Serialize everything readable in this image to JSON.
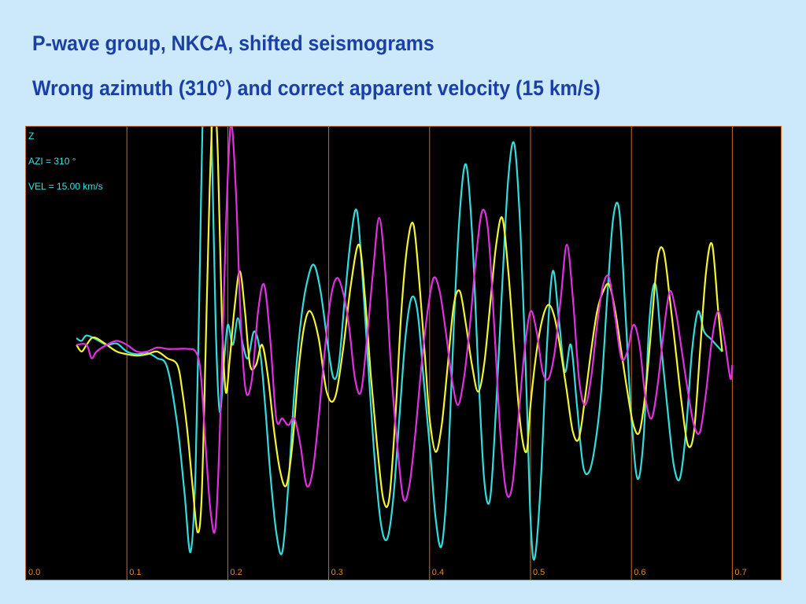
{
  "slide": {
    "title": "P-wave group, NKCA, shifted seismograms",
    "subtitle": "Wrong azimuth (310°) and correct apparent velocity (15 km/s)"
  },
  "chart_data": {
    "type": "line",
    "annotations": {
      "component": "Z",
      "azimuth": "AZI = 310 °",
      "velocity": "VEL = 15.00 km/s"
    },
    "xlim": [
      0.0,
      0.7
    ],
    "x_ticks": [
      "0.0",
      "0.1",
      "0.2",
      "0.3",
      "0.4",
      "0.5",
      "0.6",
      "0.7"
    ],
    "grid": "vertical lines at each tick",
    "colors": {
      "background": "#000000",
      "grid": "#c86e28",
      "label": "#e08a28",
      "annotation": "#3ee0e0"
    },
    "series": [
      {
        "color": "#33dcdc",
        "x": [
          0.05,
          0.055,
          0.06,
          0.07,
          0.08,
          0.09,
          0.1,
          0.11,
          0.12,
          0.13,
          0.14,
          0.15,
          0.157,
          0.163,
          0.168,
          0.172,
          0.176,
          0.18,
          0.184,
          0.188,
          0.192,
          0.196,
          0.2,
          0.205,
          0.21,
          0.215,
          0.22,
          0.226,
          0.232,
          0.237,
          0.242,
          0.248,
          0.254,
          0.26,
          0.266,
          0.272,
          0.278,
          0.285,
          0.292,
          0.3,
          0.305,
          0.31,
          0.316,
          0.322,
          0.328,
          0.334,
          0.34,
          0.346,
          0.352,
          0.358,
          0.364,
          0.37,
          0.376,
          0.382,
          0.388,
          0.394,
          0.4,
          0.406,
          0.412,
          0.418,
          0.424,
          0.43,
          0.436,
          0.442,
          0.448,
          0.454,
          0.46,
          0.466,
          0.472,
          0.478,
          0.484,
          0.49,
          0.496,
          0.5,
          0.504,
          0.51,
          0.516,
          0.522,
          0.528,
          0.534,
          0.54,
          0.546,
          0.552,
          0.558,
          0.564,
          0.57,
          0.576,
          0.582,
          0.588,
          0.594,
          0.6,
          0.606,
          0.612,
          0.618,
          0.624,
          0.63,
          0.636,
          0.642,
          0.648,
          0.654,
          0.66,
          0.666,
          0.672,
          0.678,
          0.684,
          0.69
        ],
        "y": [
          0.1,
          0.08,
          0.12,
          0.09,
          0.05,
          0.06,
          0.0,
          -0.02,
          -0.01,
          -0.05,
          -0.12,
          -0.55,
          -1.05,
          -1.5,
          -0.9,
          0.5,
          2.1,
          2.45,
          1.6,
          0.2,
          -0.45,
          -0.1,
          0.2,
          0.05,
          0.25,
          0.05,
          -0.05,
          0.15,
          0.0,
          -0.4,
          -0.9,
          -1.35,
          -1.5,
          -1.0,
          -0.3,
          0.2,
          0.5,
          0.65,
          0.45,
          0.0,
          -0.2,
          -0.1,
          0.4,
          0.85,
          1.05,
          0.5,
          -0.2,
          -0.85,
          -1.3,
          -1.4,
          -1.1,
          -0.5,
          0.1,
          0.4,
          0.3,
          -0.2,
          -0.7,
          -1.25,
          -1.45,
          -0.9,
          0.2,
          1.05,
          1.4,
          0.9,
          -0.1,
          -0.95,
          -1.1,
          -0.4,
          0.5,
          1.3,
          1.55,
          0.9,
          -0.3,
          -1.25,
          -1.55,
          -1.0,
          0.0,
          0.6,
          0.25,
          -0.15,
          0.05,
          -0.4,
          -0.85,
          -0.9,
          -0.7,
          -0.3,
          0.4,
          1.0,
          1.05,
          0.3,
          -0.5,
          -0.95,
          -0.65,
          0.25,
          0.5,
          0.0,
          -0.45,
          -0.85,
          -0.95,
          -0.6,
          0.0,
          0.3,
          0.15,
          0.1,
          0.05,
          0.0
        ]
      },
      {
        "color": "#f4f430",
        "x": [
          0.05,
          0.055,
          0.06,
          0.065,
          0.07,
          0.08,
          0.09,
          0.1,
          0.11,
          0.12,
          0.13,
          0.14,
          0.15,
          0.155,
          0.16,
          0.165,
          0.17,
          0.174,
          0.178,
          0.182,
          0.186,
          0.19,
          0.194,
          0.198,
          0.202,
          0.207,
          0.212,
          0.217,
          0.222,
          0.228,
          0.234,
          0.24,
          0.246,
          0.252,
          0.258,
          0.264,
          0.27,
          0.276,
          0.282,
          0.29,
          0.298,
          0.306,
          0.314,
          0.322,
          0.33,
          0.336,
          0.342,
          0.348,
          0.354,
          0.36,
          0.366,
          0.372,
          0.378,
          0.384,
          0.39,
          0.396,
          0.4,
          0.406,
          0.412,
          0.418,
          0.424,
          0.43,
          0.436,
          0.442,
          0.448,
          0.454,
          0.46,
          0.466,
          0.472,
          0.478,
          0.484,
          0.49,
          0.496,
          0.5,
          0.506,
          0.512,
          0.518,
          0.524,
          0.53,
          0.536,
          0.542,
          0.548,
          0.554,
          0.56,
          0.566,
          0.572,
          0.578,
          0.584,
          0.59,
          0.596,
          0.602,
          0.608,
          0.614,
          0.62,
          0.626,
          0.632,
          0.638,
          0.644,
          0.65,
          0.656,
          0.662,
          0.668,
          0.674,
          0.68,
          0.686,
          0.69
        ],
        "y": [
          0.05,
          0.0,
          0.05,
          0.1,
          0.1,
          0.05,
          0.0,
          -0.02,
          -0.03,
          -0.02,
          0.0,
          -0.05,
          -0.1,
          -0.3,
          -0.6,
          -1.0,
          -1.35,
          -1.1,
          0.0,
          1.2,
          1.9,
          1.5,
          0.3,
          -0.3,
          -0.05,
          0.35,
          0.6,
          0.3,
          -0.1,
          -0.1,
          0.05,
          -0.2,
          -0.6,
          -0.9,
          -1.0,
          -0.7,
          -0.15,
          0.2,
          0.3,
          0.1,
          -0.3,
          -0.35,
          0.0,
          0.5,
          0.8,
          0.4,
          -0.2,
          -0.7,
          -1.1,
          -1.1,
          -0.5,
          0.3,
          0.8,
          0.95,
          0.5,
          -0.1,
          -0.5,
          -0.75,
          -0.55,
          -0.1,
          0.35,
          0.45,
          0.2,
          -0.1,
          -0.3,
          -0.1,
          0.35,
          0.8,
          1.0,
          0.6,
          0.0,
          -0.55,
          -0.75,
          -0.4,
          0.0,
          0.25,
          0.35,
          0.25,
          0.0,
          -0.3,
          -0.6,
          -0.65,
          -0.35,
          0.0,
          0.3,
          0.45,
          0.5,
          0.3,
          0.0,
          -0.3,
          -0.55,
          -0.6,
          -0.3,
          0.2,
          0.7,
          0.75,
          0.4,
          0.0,
          -0.4,
          -0.7,
          -0.6,
          0.0,
          0.6,
          0.8,
          0.3,
          0.0
        ]
      },
      {
        "color": "#e030e0",
        "x": [
          0.05,
          0.06,
          0.065,
          0.07,
          0.08,
          0.09,
          0.1,
          0.11,
          0.12,
          0.13,
          0.14,
          0.15,
          0.16,
          0.168,
          0.173,
          0.178,
          0.183,
          0.188,
          0.193,
          0.198,
          0.203,
          0.208,
          0.213,
          0.218,
          0.224,
          0.23,
          0.236,
          0.242,
          0.248,
          0.254,
          0.26,
          0.266,
          0.272,
          0.278,
          0.284,
          0.29,
          0.296,
          0.302,
          0.308,
          0.314,
          0.32,
          0.326,
          0.332,
          0.338,
          0.344,
          0.35,
          0.356,
          0.362,
          0.368,
          0.374,
          0.38,
          0.386,
          0.392,
          0.398,
          0.404,
          0.41,
          0.416,
          0.422,
          0.428,
          0.434,
          0.44,
          0.446,
          0.452,
          0.458,
          0.464,
          0.47,
          0.476,
          0.482,
          0.488,
          0.494,
          0.5,
          0.506,
          0.512,
          0.518,
          0.524,
          0.53,
          0.536,
          0.542,
          0.548,
          0.554,
          0.56,
          0.566,
          0.572,
          0.578,
          0.584,
          0.59,
          0.596,
          0.602,
          0.608,
          0.614,
          0.62,
          0.626,
          0.632,
          0.638,
          0.644,
          0.65,
          0.656,
          0.662,
          0.668,
          0.674,
          0.68,
          0.686,
          0.692,
          0.698,
          0.7
        ],
        "y": [
          0.05,
          0.05,
          -0.05,
          0.0,
          0.05,
          0.08,
          0.05,
          0.0,
          0.0,
          0.03,
          0.02,
          0.02,
          0.02,
          0.0,
          -0.15,
          -0.7,
          -1.2,
          -1.3,
          -0.4,
          0.9,
          1.7,
          1.2,
          0.2,
          -0.3,
          -0.2,
          0.3,
          0.5,
          0.1,
          -0.5,
          -0.5,
          -0.55,
          -0.5,
          -0.7,
          -1.0,
          -0.9,
          -0.5,
          0.0,
          0.4,
          0.55,
          0.45,
          0.2,
          -0.2,
          -0.3,
          0.1,
          0.6,
          1.0,
          0.6,
          -0.15,
          -0.7,
          -1.1,
          -1.0,
          -0.6,
          -0.1,
          0.3,
          0.55,
          0.45,
          0.15,
          -0.2,
          -0.4,
          -0.2,
          0.2,
          0.7,
          1.05,
          0.9,
          0.2,
          -0.6,
          -1.05,
          -1.0,
          -0.5,
          0.0,
          0.3,
          0.15,
          -0.15,
          -0.2,
          0.0,
          0.4,
          0.8,
          0.4,
          -0.2,
          -0.4,
          -0.2,
          0.2,
          0.5,
          0.55,
          0.25,
          -0.05,
          0.0,
          0.2,
          0.05,
          -0.35,
          -0.5,
          -0.25,
          0.15,
          0.45,
          0.3,
          0.0,
          -0.3,
          -0.55,
          -0.6,
          -0.3,
          0.1,
          0.3,
          0.1,
          -0.2,
          -0.1
        ]
      }
    ]
  }
}
